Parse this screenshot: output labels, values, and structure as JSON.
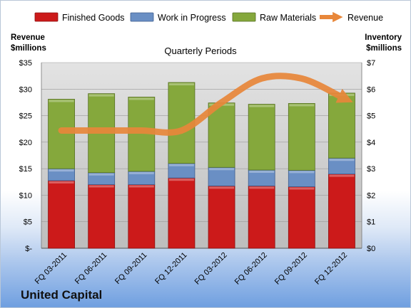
{
  "company": "United Capital",
  "chart_data": {
    "type": "bar",
    "stacked": true,
    "title": "Quarterly Periods",
    "categories": [
      "FQ 03-2011",
      "FQ 06-2011",
      "FQ 09-2011",
      "FQ 12-2011",
      "FQ 03-2012",
      "FQ 06-2012",
      "FQ 09-2012",
      "FQ 12-2012"
    ],
    "y_left": {
      "label_line1": "Revenue",
      "label_line2": "$millions",
      "ylim": [
        0,
        35
      ],
      "ticks": [
        "$-",
        "$5",
        "$10",
        "$15",
        "$20",
        "$25",
        "$30",
        "$35"
      ]
    },
    "y_right": {
      "label_line1": "Inventory",
      "label_line2": "$millions",
      "ylim": [
        0,
        7
      ],
      "ticks": [
        "$0",
        "$1",
        "$2",
        "$3",
        "$4",
        "$5",
        "$6",
        "$7"
      ]
    },
    "series": [
      {
        "name": "Finished Goods",
        "axis": "right",
        "color": "#cc1a1a",
        "values": [
          2.55,
          2.4,
          2.4,
          2.65,
          2.35,
          2.35,
          2.32,
          2.8
        ]
      },
      {
        "name": "Work in Progress",
        "axis": "right",
        "color": "#6a8fc4",
        "values": [
          0.45,
          0.45,
          0.5,
          0.55,
          0.7,
          0.6,
          0.62,
          0.6
        ]
      },
      {
        "name": "Raw Materials",
        "axis": "right",
        "color": "#85a83c",
        "values": [
          2.62,
          2.98,
          2.8,
          3.05,
          2.43,
          2.48,
          2.52,
          2.45
        ]
      }
    ],
    "line_series": {
      "name": "Revenue",
      "axis": "left",
      "color": "#e8873a",
      "values": [
        22.2,
        22.2,
        22.2,
        22.2,
        27.5,
        32.0,
        32.0,
        28.5
      ]
    },
    "grid": true,
    "legend": "top"
  }
}
